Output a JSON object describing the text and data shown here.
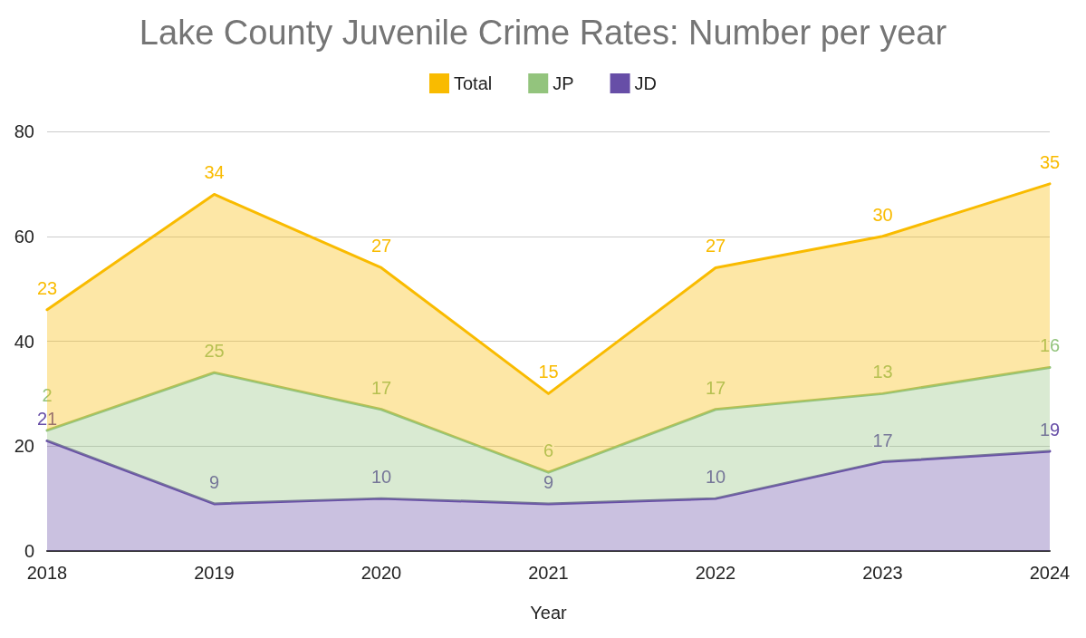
{
  "chart_data": {
    "type": "area",
    "title": "Lake County Juvenile Crime Rates: Number per year",
    "xlabel": "Year",
    "categories": [
      "2018",
      "2019",
      "2020",
      "2021",
      "2022",
      "2023",
      "2024"
    ],
    "series": [
      {
        "name": "JD",
        "color": "#674ea7",
        "values": [
          21,
          9,
          10,
          9,
          10,
          17,
          19
        ]
      },
      {
        "name": "JP",
        "color": "#93c47d",
        "values": [
          2,
          25,
          17,
          6,
          17,
          13,
          16
        ]
      },
      {
        "name": "Total",
        "color": "#f9bb00",
        "values": [
          23,
          34,
          27,
          15,
          27,
          30,
          35
        ]
      }
    ],
    "stacked": true,
    "ylim": [
      0,
      80
    ],
    "yticks": [
      0,
      20,
      40,
      60,
      80
    ],
    "grid": "y",
    "legend": "top",
    "marker": "none",
    "line_style": "solid",
    "data_labels": true
  }
}
